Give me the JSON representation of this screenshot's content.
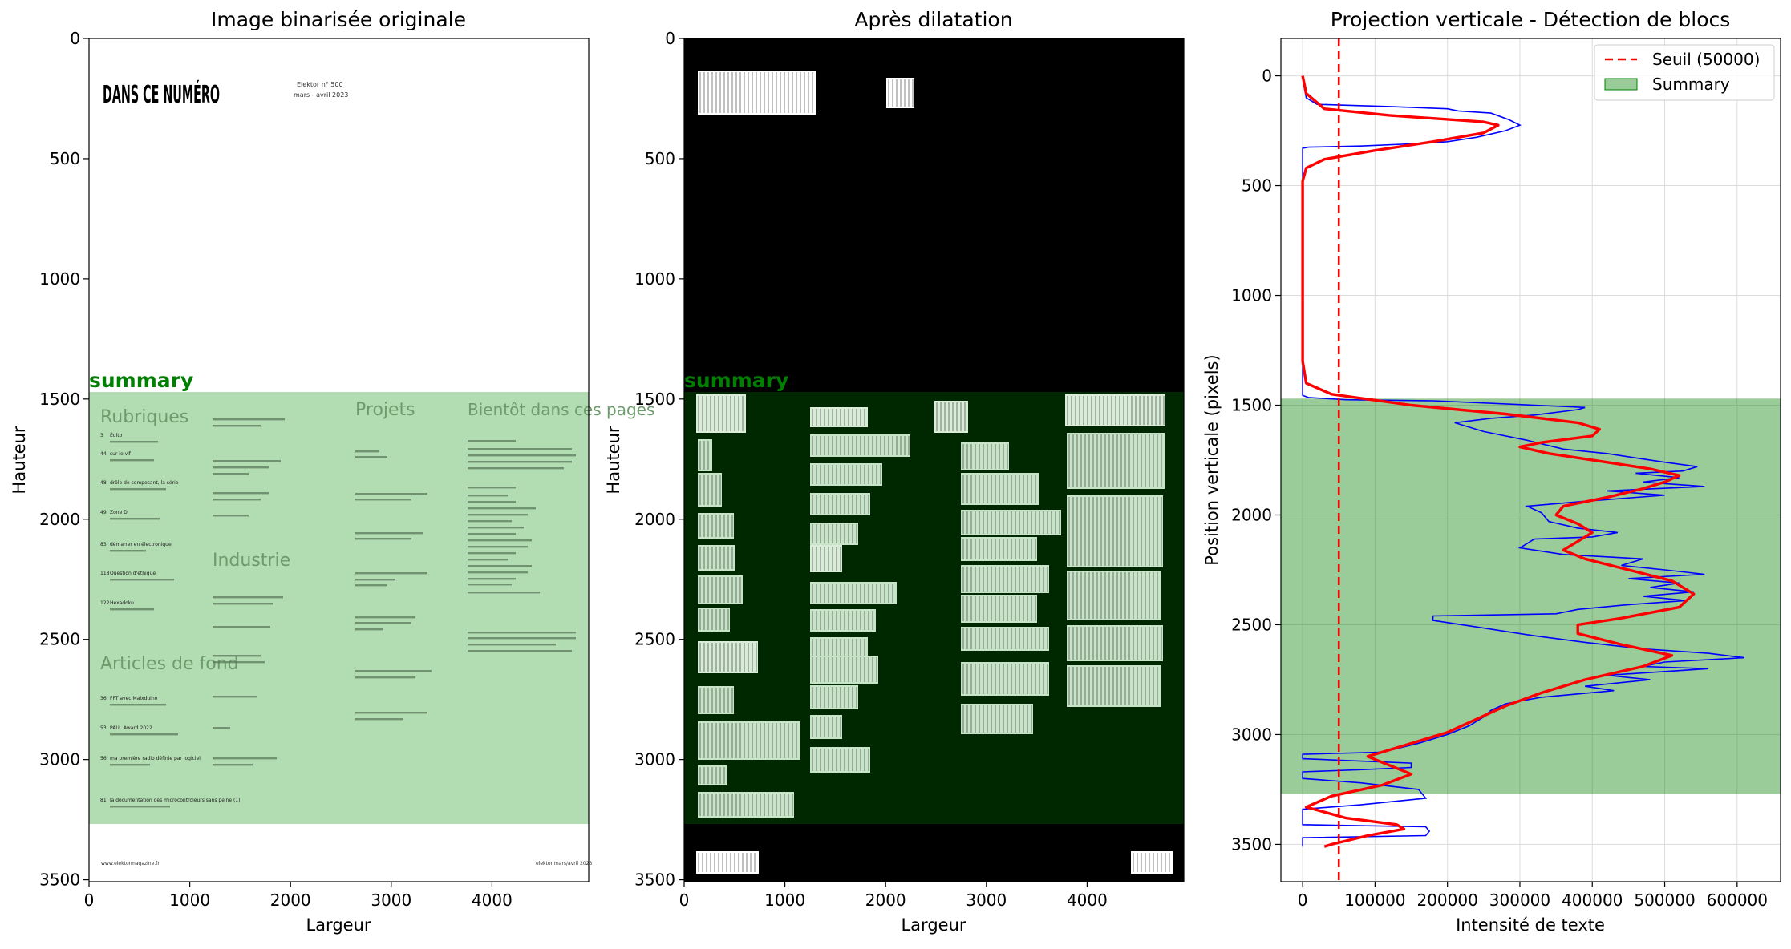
{
  "chart_data": [
    {
      "type": "image",
      "title": "Image binarisée originale",
      "xlabel": "Largeur",
      "ylabel": "Hauteur",
      "xlim": [
        0,
        4960
      ],
      "ylim": [
        3508,
        0
      ],
      "xticks": [
        0,
        1000,
        2000,
        3000,
        4000
      ],
      "yticks": [
        0,
        500,
        1000,
        1500,
        2000,
        2500,
        3000,
        3500
      ],
      "image_style": "white background, black text",
      "region": {
        "label": "summary",
        "y_start": 1470,
        "y_end": 3270,
        "color": "#008000"
      },
      "document_text": {
        "heading": "DANS CE NUMÉRO",
        "issue_line1": "Elektor n° 500",
        "issue_line2": "mars - avril 2023",
        "columns": [
          "Rubriques",
          "Projets",
          "Bientôt dans ces pages"
        ],
        "sections": [
          "Industrie",
          "Articles de fond"
        ],
        "rubriques": [
          {
            "num": "3",
            "title": "Édito"
          },
          {
            "num": "44",
            "title": "sur le vif"
          },
          {
            "num": "48",
            "title": "drôle de composant, la série"
          },
          {
            "num": "49",
            "title": "Zone D"
          },
          {
            "num": "83",
            "title": "démarrer en électronique"
          },
          {
            "num": "118",
            "title": "Question d'éthique"
          },
          {
            "num": "122",
            "title": "Hexadoku"
          }
        ],
        "articles": [
          {
            "num": "36",
            "title": "FFT avec Maixduino"
          },
          {
            "num": "53",
            "title": "PAUL Award 2022"
          },
          {
            "num": "56",
            "title": "ma première radio définie par logiciel"
          },
          {
            "num": "81",
            "title": "la documentation des microcontrôleurs sans peine (1)"
          }
        ],
        "footer_left": "www.elektormagazine.fr",
        "footer_right": "elektor  mars/avril 2023"
      }
    },
    {
      "type": "image",
      "title": "Après dilatation",
      "xlabel": "Largeur",
      "ylabel": "Hauteur",
      "xlim": [
        0,
        4960
      ],
      "ylim": [
        3508,
        0
      ],
      "xticks": [
        0,
        1000,
        2000,
        3000,
        4000
      ],
      "yticks": [
        0,
        500,
        1000,
        1500,
        2000,
        2500,
        3000,
        3500
      ],
      "image_style": "black background, white dilated text blocks",
      "region": {
        "label": "summary",
        "y_start": 1470,
        "y_end": 3270,
        "color": "#008000"
      }
    },
    {
      "type": "line",
      "title": "Projection verticale - Détection de blocs",
      "xlabel": "Intensité de texte",
      "ylabel": "Position verticale (pixels)",
      "xlim": [
        -30000,
        660000
      ],
      "ylim": [
        3670,
        -170
      ],
      "xticks": [
        0,
        100000,
        200000,
        300000,
        400000,
        500000,
        600000
      ],
      "yticks": [
        0,
        500,
        1000,
        1500,
        2000,
        2500,
        3000,
        3500
      ],
      "grid": true,
      "legend_position": "top-right",
      "threshold": {
        "value": 50000,
        "label": "Seuil (50000)",
        "color": "#ff0000"
      },
      "region": {
        "label": "Summary",
        "y_start": 1470,
        "y_end": 3270,
        "color": "#008000"
      },
      "series": [
        {
          "color": "#0000ff",
          "points": [
            [
              0,
              0
            ],
            [
              2000,
              50
            ],
            [
              5000,
              100
            ],
            [
              20000,
              130
            ],
            [
              120000,
              140
            ],
            [
              200000,
              150
            ],
            [
              215000,
              160
            ],
            [
              260000,
              170
            ],
            [
              285000,
              200
            ],
            [
              300000,
              225
            ],
            [
              280000,
              250
            ],
            [
              240000,
              280
            ],
            [
              200000,
              300
            ],
            [
              150000,
              310
            ],
            [
              80000,
              320
            ],
            [
              8000,
              325
            ],
            [
              0,
              330
            ],
            [
              0,
              1455
            ],
            [
              8000,
              1465
            ],
            [
              60000,
              1475
            ],
            [
              180000,
              1480
            ],
            [
              320000,
              1500
            ],
            [
              390000,
              1510
            ],
            [
              380000,
              1520
            ],
            [
              320000,
              1545
            ],
            [
              260000,
              1560
            ],
            [
              210000,
              1580
            ],
            [
              250000,
              1620
            ],
            [
              310000,
              1660
            ],
            [
              360000,
              1700
            ],
            [
              420000,
              1720
            ],
            [
              460000,
              1740
            ],
            [
              500000,
              1760
            ],
            [
              545000,
              1780
            ],
            [
              525000,
              1800
            ],
            [
              460000,
              1810
            ],
            [
              520000,
              1830
            ],
            [
              470000,
              1850
            ],
            [
              555000,
              1870
            ],
            [
              420000,
              1890
            ],
            [
              500000,
              1910
            ],
            [
              380000,
              1940
            ],
            [
              310000,
              1960
            ],
            [
              330000,
              1990
            ],
            [
              340000,
              2030
            ],
            [
              380000,
              2060
            ],
            [
              435000,
              2080
            ],
            [
              400000,
              2100
            ],
            [
              320000,
              2110
            ],
            [
              300000,
              2150
            ],
            [
              360000,
              2180
            ],
            [
              470000,
              2200
            ],
            [
              440000,
              2230
            ],
            [
              500000,
              2250
            ],
            [
              555000,
              2270
            ],
            [
              450000,
              2290
            ],
            [
              520000,
              2310
            ],
            [
              480000,
              2330
            ],
            [
              540000,
              2350
            ],
            [
              470000,
              2370
            ],
            [
              530000,
              2390
            ],
            [
              445000,
              2410
            ],
            [
              380000,
              2430
            ],
            [
              350000,
              2450
            ],
            [
              180000,
              2460
            ],
            [
              180000,
              2480
            ],
            [
              240000,
              2510
            ],
            [
              320000,
              2550
            ],
            [
              390000,
              2580
            ],
            [
              470000,
              2610
            ],
            [
              560000,
              2630
            ],
            [
              610000,
              2650
            ],
            [
              500000,
              2670
            ],
            [
              470000,
              2690
            ],
            [
              560000,
              2700
            ],
            [
              420000,
              2730
            ],
            [
              480000,
              2750
            ],
            [
              390000,
              2780
            ],
            [
              430000,
              2800
            ],
            [
              330000,
              2830
            ],
            [
              280000,
              2860
            ],
            [
              260000,
              2890
            ],
            [
              250000,
              2920
            ],
            [
              230000,
              2960
            ],
            [
              200000,
              3000
            ],
            [
              160000,
              3040
            ],
            [
              110000,
              3080
            ],
            [
              0,
              3090
            ],
            [
              0,
              3110
            ],
            [
              150000,
              3130
            ],
            [
              150000,
              3150
            ],
            [
              80000,
              3160
            ],
            [
              0,
              3170
            ],
            [
              0,
              3200
            ],
            [
              80000,
              3220
            ],
            [
              160000,
              3250
            ],
            [
              170000,
              3290
            ],
            [
              80000,
              3320
            ],
            [
              0,
              3340
            ],
            [
              0,
              3410
            ],
            [
              170000,
              3420
            ],
            [
              175000,
              3440
            ],
            [
              170000,
              3460
            ],
            [
              0,
              3470
            ],
            [
              0,
              3510
            ]
          ]
        },
        {
          "color": "#ff0000",
          "points": [
            [
              0,
              0
            ],
            [
              5000,
              80
            ],
            [
              30000,
              150
            ],
            [
              120000,
              180
            ],
            [
              250000,
              210
            ],
            [
              270000,
              225
            ],
            [
              250000,
              260
            ],
            [
              180000,
              300
            ],
            [
              100000,
              340
            ],
            [
              30000,
              380
            ],
            [
              5000,
              420
            ],
            [
              0,
              480
            ],
            [
              0,
              1300
            ],
            [
              5000,
              1400
            ],
            [
              40000,
              1450
            ],
            [
              150000,
              1500
            ],
            [
              280000,
              1540
            ],
            [
              380000,
              1580
            ],
            [
              410000,
              1610
            ],
            [
              400000,
              1640
            ],
            [
              330000,
              1670
            ],
            [
              300000,
              1690
            ],
            [
              340000,
              1720
            ],
            [
              420000,
              1760
            ],
            [
              480000,
              1790
            ],
            [
              520000,
              1820
            ],
            [
              500000,
              1850
            ],
            [
              470000,
              1880
            ],
            [
              420000,
              1920
            ],
            [
              360000,
              1960
            ],
            [
              350000,
              2000
            ],
            [
              380000,
              2040
            ],
            [
              400000,
              2080
            ],
            [
              380000,
              2120
            ],
            [
              360000,
              2160
            ],
            [
              390000,
              2200
            ],
            [
              450000,
              2250
            ],
            [
              510000,
              2300
            ],
            [
              540000,
              2360
            ],
            [
              520000,
              2420
            ],
            [
              440000,
              2470
            ],
            [
              380000,
              2500
            ],
            [
              380000,
              2540
            ],
            [
              440000,
              2590
            ],
            [
              510000,
              2640
            ],
            [
              470000,
              2690
            ],
            [
              390000,
              2750
            ],
            [
              330000,
              2810
            ],
            [
              280000,
              2870
            ],
            [
              240000,
              2930
            ],
            [
              200000,
              2990
            ],
            [
              130000,
              3060
            ],
            [
              90000,
              3100
            ],
            [
              120000,
              3140
            ],
            [
              150000,
              3180
            ],
            [
              110000,
              3230
            ],
            [
              40000,
              3280
            ],
            [
              5000,
              3330
            ],
            [
              60000,
              3380
            ],
            [
              130000,
              3410
            ],
            [
              140000,
              3430
            ],
            [
              90000,
              3460
            ],
            [
              40000,
              3500
            ],
            [
              30000,
              3510
            ]
          ]
        }
      ]
    }
  ]
}
